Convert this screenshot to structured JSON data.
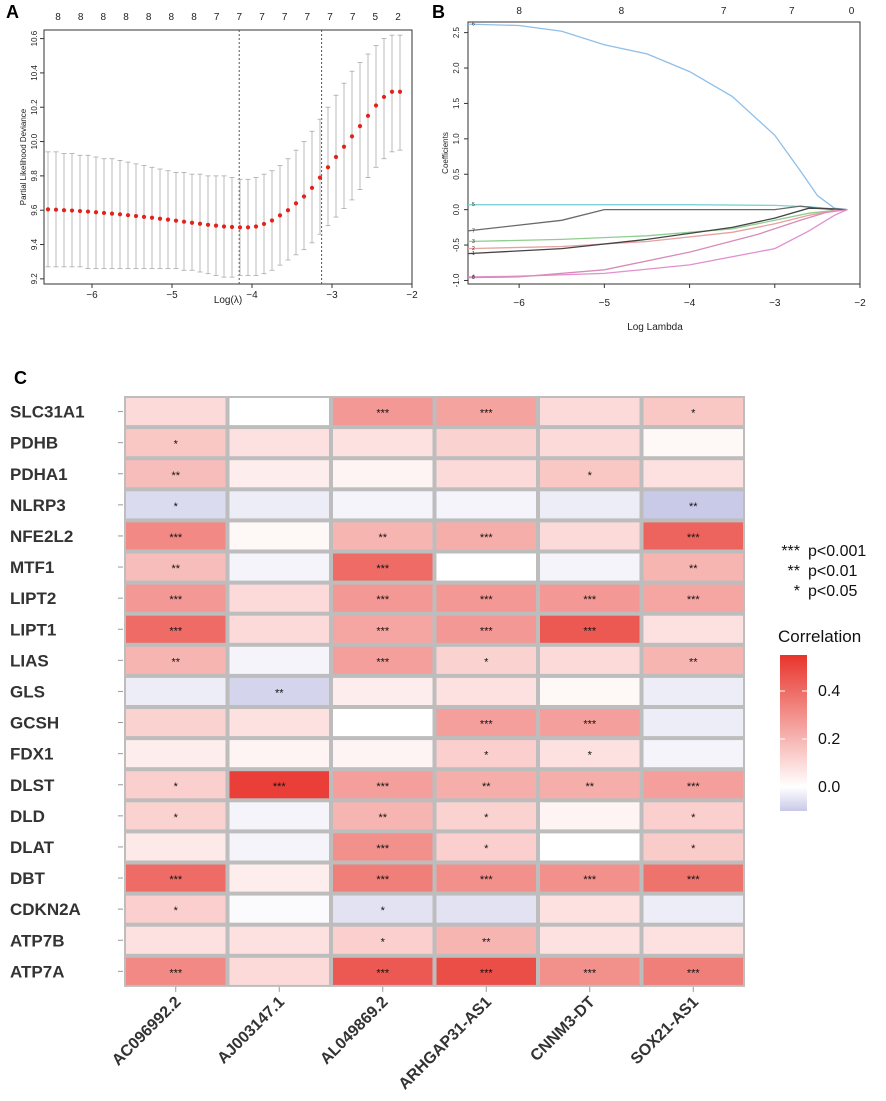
{
  "panels": {
    "A": {
      "letter": "A",
      "chart_data": {
        "type": "scatter",
        "xlabel": "Log(λ)",
        "ylabel": "Partial Likelihood Deviance",
        "xlim": [
          -6.6,
          -2.0
        ],
        "ylim": [
          9.17,
          10.65
        ],
        "xticks": [
          -6,
          -5,
          -4,
          -3,
          -2
        ],
        "yticks": [
          9.2,
          9.4,
          9.6,
          9.8,
          10.0,
          10.2,
          10.4,
          10.6
        ],
        "top_labels": [
          "8",
          "8",
          "8",
          "8",
          "8",
          "8",
          "8",
          "7",
          "7",
          "7",
          "7",
          "7",
          "7",
          "7",
          "5",
          "2"
        ],
        "vlines": [
          -4.16,
          -3.13
        ],
        "x": [
          -6.55,
          -6.45,
          -6.35,
          -6.25,
          -6.15,
          -6.05,
          -5.95,
          -5.85,
          -5.75,
          -5.65,
          -5.55,
          -5.45,
          -5.35,
          -5.25,
          -5.15,
          -5.05,
          -4.95,
          -4.85,
          -4.75,
          -4.65,
          -4.55,
          -4.45,
          -4.35,
          -4.25,
          -4.15,
          -4.05,
          -3.95,
          -3.85,
          -3.75,
          -3.65,
          -3.55,
          -3.45,
          -3.35,
          -3.25,
          -3.15,
          -3.05,
          -2.95,
          -2.85,
          -2.75,
          -2.65,
          -2.55,
          -2.45,
          -2.35,
          -2.25,
          -2.15
        ],
        "y": [
          9.605,
          9.603,
          9.6,
          9.598,
          9.595,
          9.592,
          9.588,
          9.584,
          9.58,
          9.576,
          9.571,
          9.566,
          9.561,
          9.556,
          9.55,
          9.545,
          9.539,
          9.533,
          9.527,
          9.521,
          9.515,
          9.51,
          9.505,
          9.502,
          9.5,
          9.5,
          9.505,
          9.52,
          9.54,
          9.57,
          9.6,
          9.64,
          9.68,
          9.73,
          9.79,
          9.85,
          9.91,
          9.97,
          10.03,
          10.09,
          10.15,
          10.21,
          10.26,
          10.29,
          10.29
        ],
        "err_hi": [
          9.94,
          9.94,
          9.93,
          9.93,
          9.92,
          9.92,
          9.91,
          9.9,
          9.9,
          9.89,
          9.88,
          9.87,
          9.86,
          9.85,
          9.84,
          9.83,
          9.82,
          9.82,
          9.81,
          9.81,
          9.8,
          9.8,
          9.8,
          9.79,
          9.78,
          9.78,
          9.79,
          9.81,
          9.83,
          9.86,
          9.9,
          9.95,
          10.0,
          10.06,
          10.13,
          10.2,
          10.27,
          10.34,
          10.41,
          10.46,
          10.51,
          10.56,
          10.6,
          10.62,
          10.62
        ],
        "err_lo": [
          9.27,
          9.27,
          9.27,
          9.27,
          9.27,
          9.26,
          9.26,
          9.26,
          9.26,
          9.26,
          9.26,
          9.26,
          9.26,
          9.26,
          9.26,
          9.26,
          9.26,
          9.25,
          9.25,
          9.24,
          9.23,
          9.22,
          9.21,
          9.21,
          9.22,
          9.22,
          9.22,
          9.23,
          9.25,
          9.28,
          9.31,
          9.34,
          9.37,
          9.41,
          9.46,
          9.51,
          9.56,
          9.61,
          9.66,
          9.72,
          9.79,
          9.85,
          9.9,
          9.94,
          9.95
        ]
      }
    },
    "B": {
      "letter": "B",
      "chart_data": {
        "type": "line",
        "xlabel": "Log Lambda",
        "ylabel": "Coefficients",
        "xlim": [
          -6.6,
          -2.0
        ],
        "ylim": [
          -1.05,
          2.65
        ],
        "xticks": [
          -6,
          -5,
          -4,
          -3,
          -2
        ],
        "yticks": [
          -1.0,
          -0.5,
          0.0,
          0.5,
          1.0,
          1.5,
          2.0,
          2.5
        ],
        "top_labels": [
          "8",
          "8",
          "7",
          "7",
          "0"
        ],
        "top_label_x": [
          -6.0,
          -4.8,
          -3.6,
          -2.8,
          -2.1
        ],
        "series": [
          {
            "name": "6",
            "color": "#8fbfe8",
            "x": [
              -6.6,
              -6.0,
              -5.5,
              -5.0,
              -4.5,
              -4.0,
              -3.5,
              -3.0,
              -2.7,
              -2.5,
              -2.3,
              -2.15
            ],
            "y": [
              2.62,
              2.6,
              2.52,
              2.33,
              2.2,
              1.95,
              1.6,
              1.05,
              0.55,
              0.2,
              0.02,
              0.0
            ]
          },
          {
            "name": "5",
            "color": "#7fd3d6",
            "x": [
              -6.6,
              -5.0,
              -4.0,
              -3.0,
              -2.6,
              -2.3,
              -2.15
            ],
            "y": [
              0.07,
              0.07,
              0.07,
              0.06,
              0.04,
              0.01,
              0.0
            ]
          },
          {
            "name": "7",
            "color": "#6a6a6a",
            "x": [
              -6.6,
              -5.5,
              -5.0,
              -4.0,
              -3.0,
              -2.7,
              -2.5,
              -2.3,
              -2.15
            ],
            "y": [
              -0.3,
              -0.15,
              0.0,
              0.0,
              0.0,
              0.05,
              0.02,
              0.0,
              0.0
            ]
          },
          {
            "name": "3",
            "color": "#8fce8f",
            "x": [
              -6.6,
              -5.5,
              -4.5,
              -3.5,
              -3.0,
              -2.6,
              -2.3,
              -2.15
            ],
            "y": [
              -0.45,
              -0.42,
              -0.37,
              -0.27,
              -0.15,
              -0.05,
              -0.01,
              0.0
            ]
          },
          {
            "name": "2",
            "color": "#e8a0a0",
            "x": [
              -6.6,
              -5.5,
              -4.5,
              -3.5,
              -3.0,
              -2.6,
              -2.3,
              -2.15
            ],
            "y": [
              -0.55,
              -0.52,
              -0.45,
              -0.32,
              -0.2,
              -0.08,
              -0.01,
              0.0
            ]
          },
          {
            "name": "1",
            "color": "#444444",
            "x": [
              -6.6,
              -5.5,
              -4.5,
              -3.5,
              -3.0,
              -2.6,
              -2.3,
              -2.15
            ],
            "y": [
              -0.62,
              -0.55,
              -0.42,
              -0.25,
              -0.12,
              0.02,
              0.01,
              0.0
            ]
          },
          {
            "name": "4",
            "color": "#e28fd0",
            "x": [
              -6.6,
              -6.0,
              -5.0,
              -4.0,
              -3.0,
              -2.6,
              -2.3,
              -2.15
            ],
            "y": [
              -0.95,
              -0.94,
              -0.9,
              -0.78,
              -0.55,
              -0.3,
              -0.08,
              0.0
            ]
          },
          {
            "name": "8",
            "color": "#d98ab8",
            "x": [
              -6.6,
              -6.0,
              -5.0,
              -4.0,
              -3.2,
              -2.7,
              -2.4,
              -2.15
            ],
            "y": [
              -0.96,
              -0.95,
              -0.85,
              -0.6,
              -0.35,
              -0.15,
              -0.04,
              0.0
            ]
          }
        ]
      }
    },
    "C": {
      "letter": "C",
      "chart_data": {
        "type": "heatmap",
        "rows": [
          "SLC31A1",
          "PDHB",
          "PDHA1",
          "NLRP3",
          "NFE2L2",
          "MTF1",
          "LIPT2",
          "LIPT1",
          "LIAS",
          "GLS",
          "GCSH",
          "FDX1",
          "DLST",
          "DLD",
          "DLAT",
          "DBT",
          "CDKN2A",
          "ATP7B",
          "ATP7A"
        ],
        "columns": [
          "AC096992.2",
          "AJ003147.1",
          "AL049869.2",
          "ARHGAP31-AS1",
          "CNNM3-DT",
          "SOX21-AS1"
        ],
        "values": [
          [
            0.1,
            0.0,
            0.28,
            0.25,
            0.1,
            0.15
          ],
          [
            0.15,
            0.08,
            0.08,
            0.12,
            0.1,
            0.02
          ],
          [
            0.18,
            0.05,
            0.03,
            0.1,
            0.15,
            0.08
          ],
          [
            -0.1,
            -0.05,
            -0.03,
            -0.03,
            -0.05,
            -0.15
          ],
          [
            0.32,
            0.02,
            0.2,
            0.22,
            0.1,
            0.42
          ],
          [
            0.18,
            -0.03,
            0.4,
            0.0,
            -0.03,
            0.2
          ],
          [
            0.28,
            0.1,
            0.28,
            0.28,
            0.28,
            0.24
          ],
          [
            0.4,
            0.1,
            0.24,
            0.28,
            0.45,
            0.08
          ],
          [
            0.2,
            -0.03,
            0.26,
            0.12,
            0.1,
            0.2
          ],
          [
            -0.05,
            -0.12,
            0.05,
            0.08,
            0.02,
            -0.05
          ],
          [
            0.12,
            0.08,
            0.0,
            0.26,
            0.26,
            -0.05
          ],
          [
            0.05,
            0.03,
            0.03,
            0.13,
            0.08,
            -0.03
          ],
          [
            0.13,
            0.52,
            0.26,
            0.22,
            0.22,
            0.26
          ],
          [
            0.12,
            -0.03,
            0.2,
            0.12,
            0.03,
            0.13
          ],
          [
            0.06,
            -0.03,
            0.3,
            0.13,
            0.0,
            0.14
          ],
          [
            0.4,
            0.05,
            0.35,
            0.3,
            0.3,
            0.38
          ],
          [
            0.13,
            -0.01,
            -0.08,
            -0.08,
            0.08,
            -0.05
          ],
          [
            0.08,
            0.08,
            0.13,
            0.2,
            0.08,
            0.08
          ],
          [
            0.32,
            0.1,
            0.45,
            0.48,
            0.3,
            0.35
          ]
        ],
        "stars": [
          [
            "",
            "",
            "***",
            "***",
            "",
            "*"
          ],
          [
            "*",
            "",
            "",
            "",
            "",
            ""
          ],
          [
            "**",
            "",
            "",
            "",
            "*",
            ""
          ],
          [
            "*",
            "",
            "",
            "",
            "",
            "**"
          ],
          [
            "***",
            "",
            "**",
            "***",
            "",
            "***"
          ],
          [
            "**",
            "",
            "***",
            "",
            "",
            "**"
          ],
          [
            "***",
            "",
            "***",
            "***",
            "***",
            "***"
          ],
          [
            "***",
            "",
            "***",
            "***",
            "***",
            ""
          ],
          [
            "**",
            "",
            "***",
            "*",
            "",
            "**"
          ],
          [
            "",
            "**",
            "",
            "",
            "",
            ""
          ],
          [
            "",
            "",
            "",
            "***",
            "***",
            ""
          ],
          [
            "",
            "",
            "",
            "*",
            "*",
            ""
          ],
          [
            "*",
            "***",
            "***",
            "**",
            "**",
            "***"
          ],
          [
            "*",
            "",
            "**",
            "*",
            "",
            "*"
          ],
          [
            "",
            "",
            "***",
            "*",
            "",
            "*"
          ],
          [
            "***",
            "",
            "***",
            "***",
            "***",
            "***"
          ],
          [
            "*",
            "",
            "*",
            "",
            "",
            ""
          ],
          [
            "",
            "",
            "*",
            "**",
            "",
            ""
          ],
          [
            "***",
            "",
            "***",
            "***",
            "***",
            "***"
          ]
        ],
        "significance_legend": [
          {
            "stars": "***",
            "label": "p<0.001"
          },
          {
            "stars": "**",
            "label": "p<0.01"
          },
          {
            "stars": "*",
            "label": "p<0.05"
          }
        ],
        "colorbar": {
          "title": "Correlation",
          "ticks": [
            0.4,
            0.2,
            0.0
          ],
          "tick_labels": [
            "0.4",
            "0.2",
            "0.0"
          ],
          "range": [
            -0.1,
            0.55
          ]
        },
        "colors": {
          "low": "#c9c9e8",
          "mid": "#ffffff",
          "high": "#e8342c",
          "grid": "#bdbdbd"
        }
      }
    }
  }
}
